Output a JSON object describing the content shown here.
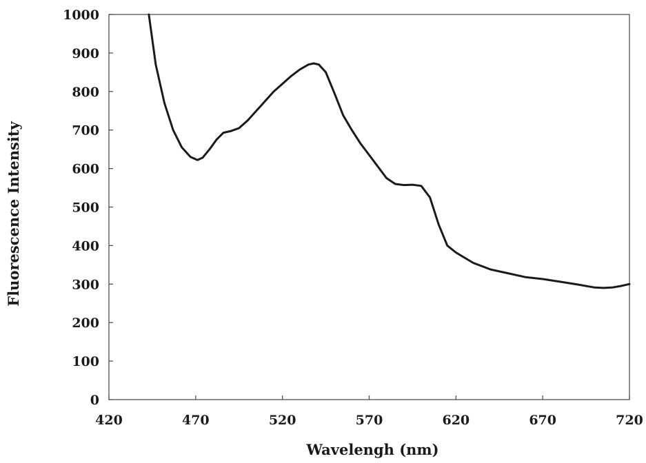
{
  "chart_data": {
    "type": "line",
    "title": "",
    "xlabel": "Wavelengh (nm)",
    "ylabel": "Fluorescence Intensity",
    "xlim": [
      420,
      720
    ],
    "ylim": [
      0,
      1000
    ],
    "xticks": [
      "420",
      "470",
      "520",
      "570",
      "620",
      "670",
      "720"
    ],
    "yticks": [
      "0",
      "100",
      "200",
      "300",
      "400",
      "500",
      "600",
      "700",
      "800",
      "900",
      "1000"
    ],
    "grid": false,
    "legend": "none",
    "line_color": "#1a1a1a",
    "series": [
      {
        "x": [
          443,
          447,
          452,
          457,
          462,
          467,
          471,
          474,
          478,
          482,
          486,
          490,
          495,
          500,
          505,
          510,
          515,
          520,
          525,
          530,
          535,
          538,
          541,
          545,
          550,
          555,
          560,
          565,
          570,
          575,
          580,
          585,
          590,
          595,
          600,
          605,
          610,
          615,
          620,
          630,
          640,
          650,
          660,
          670,
          680,
          690,
          700,
          705,
          710,
          715,
          720
        ],
        "y": [
          1000,
          870,
          770,
          700,
          655,
          630,
          622,
          628,
          650,
          675,
          693,
          697,
          705,
          725,
          750,
          775,
          800,
          820,
          840,
          857,
          870,
          873,
          870,
          850,
          795,
          738,
          700,
          665,
          635,
          605,
          575,
          560,
          557,
          558,
          555,
          525,
          455,
          400,
          382,
          355,
          338,
          328,
          318,
          313,
          306,
          299,
          291,
          290,
          291,
          295,
          300
        ]
      }
    ]
  }
}
